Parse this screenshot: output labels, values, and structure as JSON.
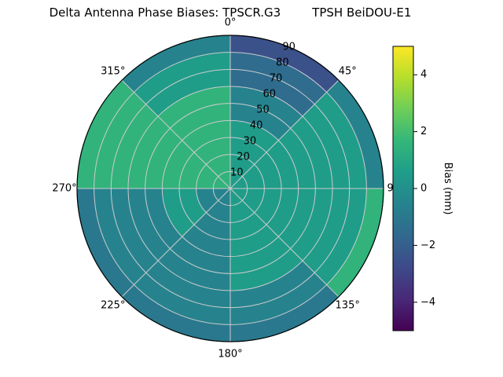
{
  "figure": {
    "title_left": "Delta Antenna Phase Biases: TPSCR.G3",
    "title_right": "TPSH BeiDOU-E1",
    "background": "#ffffff"
  },
  "chart_data": {
    "type": "heatmap",
    "projection": "polar",
    "angle_unit": "degrees",
    "description": "Polar (azimuth vs zenith angle) filled-contour map of antenna phase bias in mm",
    "azimuth_labels": [
      "0°",
      "45°",
      "90°",
      "135°",
      "180°",
      "225°",
      "270°",
      "315°"
    ],
    "zenith_ticks": [
      10,
      20,
      30,
      40,
      50,
      60,
      70,
      80,
      90
    ],
    "radial_label_angle_deg": 22.5,
    "azimuth_bin_edges": [
      0,
      45,
      90,
      135,
      180,
      225,
      270,
      315,
      360
    ],
    "zenith_bin_edges": [
      0,
      20,
      40,
      60,
      80,
      90
    ],
    "bias_values_mm": [
      [
        0.5,
        0.5,
        0.5,
        0.5,
        -0.5,
        -0.5,
        1.5,
        1.5
      ],
      [
        0.5,
        0.5,
        0.5,
        0.5,
        -0.5,
        0.5,
        1.5,
        1.5
      ],
      [
        -0.5,
        0.5,
        0.5,
        0.5,
        -0.5,
        -0.5,
        1.5,
        1.5
      ],
      [
        -1.5,
        0.5,
        0.5,
        -0.5,
        -0.5,
        -0.5,
        1.5,
        0.5
      ],
      [
        -2.5,
        -0.5,
        1.5,
        -1.0,
        -1.0,
        -1.0,
        1.5,
        -0.5
      ]
    ],
    "grid": {
      "color": "#cccccc",
      "outline": "#000000",
      "grid_on": true
    },
    "colorbar": {
      "label": "Bias (mm)",
      "ticks": [
        4,
        2,
        0,
        -2,
        -4
      ],
      "vmin": -5,
      "vmax": 5,
      "colormap": "viridis",
      "colormap_stops": [
        "#440154",
        "#482878",
        "#3e4989",
        "#31688e",
        "#26828e",
        "#1f9e89",
        "#35b779",
        "#6ece58",
        "#b5de2b",
        "#fde725"
      ],
      "position": "right"
    },
    "legend": null
  }
}
